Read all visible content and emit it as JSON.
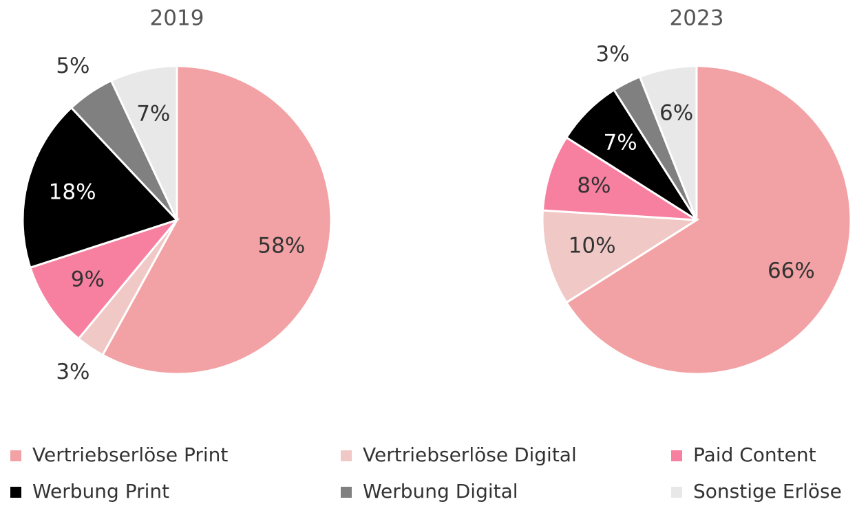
{
  "chart_data": [
    {
      "type": "pie",
      "title": "2019",
      "categories": [
        "Vertriebserlöse Print",
        "Vertriebserlöse Digital",
        "Paid Content",
        "Werbung Print",
        "Werbung Digital",
        "Sonstige Erlöse"
      ],
      "colors": [
        "#f2a2a4",
        "#f0c9c6",
        "#f77fa0",
        "#000000",
        "#808080",
        "#e8e8e8"
      ],
      "values": [
        58,
        3,
        9,
        18,
        5,
        7
      ],
      "value_labels": [
        "58%",
        "3%",
        "9%",
        "18%",
        "5%",
        "7%"
      ]
    },
    {
      "type": "pie",
      "title": "2023",
      "values": [
        66,
        10,
        8,
        7,
        3,
        6
      ],
      "value_labels": [
        "66%",
        "10%",
        "8%",
        "7%",
        "3%",
        "6%"
      ]
    }
  ]
}
